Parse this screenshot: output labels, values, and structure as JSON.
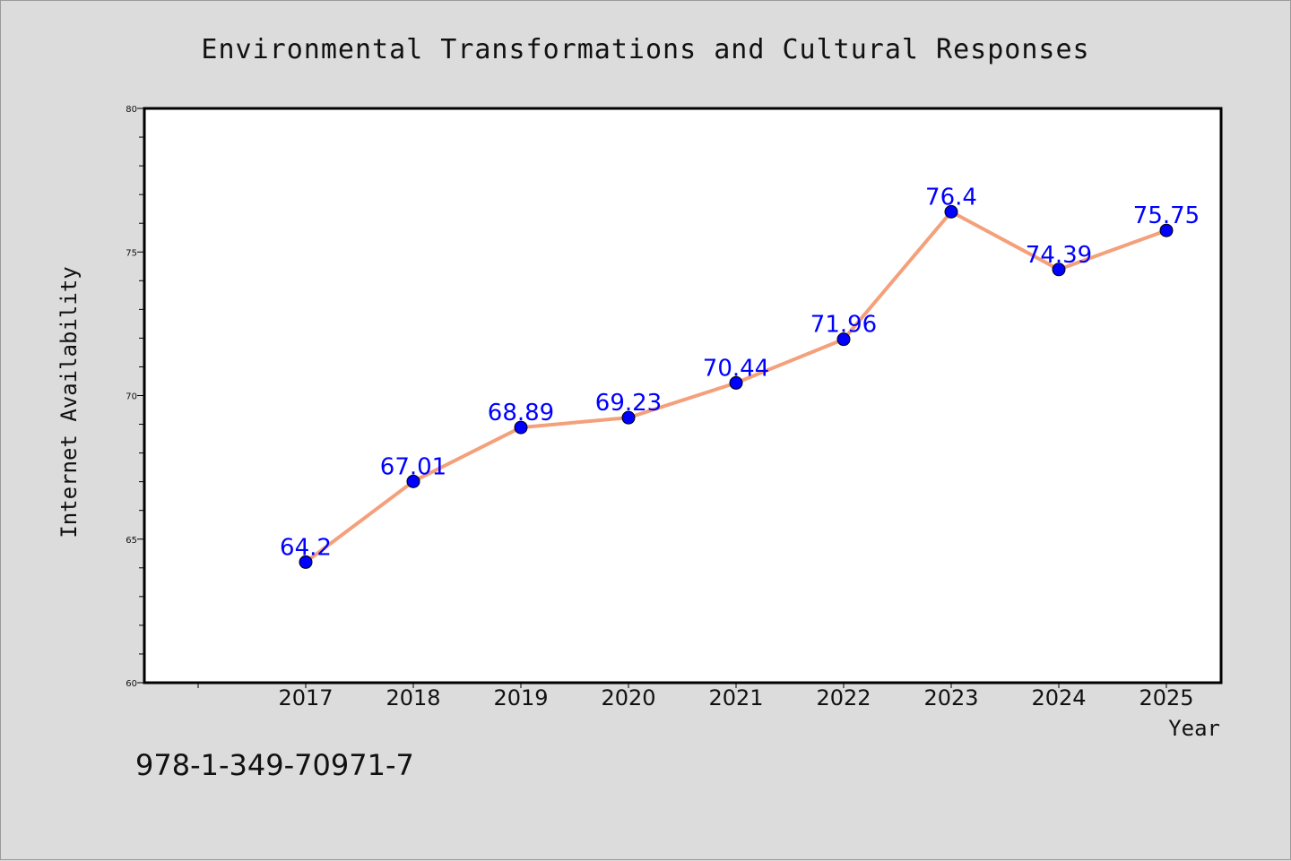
{
  "chart_data": {
    "type": "line",
    "title": "Environmental Transformations and Cultural Responses",
    "xlabel": "Year",
    "ylabel": "Internet Availability",
    "categories": [
      "2017",
      "2018",
      "2019",
      "2020",
      "2021",
      "2022",
      "2023",
      "2024",
      "2025"
    ],
    "series": [
      {
        "values": [
          64.2,
          67.01,
          68.89,
          69.23,
          70.44,
          71.96,
          76.4,
          74.39,
          75.75
        ],
        "labels": [
          "64.2",
          "67.01",
          "68.89",
          "69.23",
          "70.44",
          "71.96",
          "76.4",
          "74.39",
          "75.75"
        ],
        "line_color": "#f4a07a",
        "marker_color": "#0000ff"
      }
    ],
    "ylim": [
      60,
      80
    ],
    "yticks": [
      "60",
      "65",
      "70",
      "75",
      "80"
    ],
    "grid": false,
    "legend": "none"
  },
  "footer": {
    "isbn": "978-1-349-70971-7"
  },
  "colors": {
    "background": "#dcdcdc",
    "plot_background": "#ffffff",
    "line": "#f4a07a",
    "marker": "#0000ff",
    "data_label": "#0000ff"
  }
}
